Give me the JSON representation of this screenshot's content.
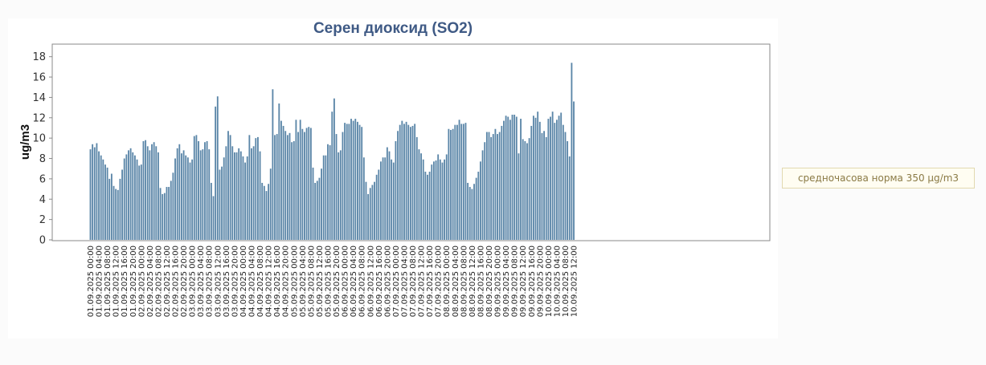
{
  "norm_note": "средночасова норма 350 µg/m3",
  "chart_data": {
    "type": "bar",
    "title": "Серен диоксид (SO2)",
    "xlabel": "",
    "ylabel": "ug/m3",
    "ylim": [
      0,
      19
    ],
    "yticks": [
      0,
      2,
      4,
      6,
      8,
      10,
      12,
      14,
      16,
      18
    ],
    "grid": false,
    "bar_color": "#5b86a8",
    "xtick_labels": [
      "01.09.2025 00:00",
      "01.09.2025 04:00",
      "01.09.2025 08:00",
      "01.09.2025 12:00",
      "01.09.2025 16:00",
      "01.09.2025 20:00",
      "02.09.2025 00:00",
      "02.09.2025 04:00",
      "02.09.2025 08:00",
      "02.09.2025 12:00",
      "02.09.2025 16:00",
      "02.09.2025 20:00",
      "03.09.2025 00:00",
      "03.09.2025 04:00",
      "03.09.2025 08:00",
      "03.09.2025 12:00",
      "03.09.2025 16:00",
      "03.09.2025 20:00",
      "04.09.2025 00:00",
      "04.09.2025 04:00",
      "04.09.2025 08:00",
      "04.09.2025 12:00",
      "04.09.2025 16:00",
      "04.09.2025 20:00",
      "05.09.2025 00:00",
      "05.09.2025 04:00",
      "05.09.2025 08:00",
      "05.09.2025 12:00",
      "05.09.2025 16:00",
      "05.09.2025 20:00",
      "06.09.2025 00:00",
      "06.09.2025 04:00",
      "06.09.2025 08:00",
      "06.09.2025 12:00",
      "06.09.2025 16:00",
      "06.09.2025 20:00",
      "07.09.2025 00:00",
      "07.09.2025 04:00",
      "07.09.2025 08:00",
      "07.09.2025 12:00",
      "07.09.2025 16:00",
      "07.09.2025 20:00",
      "08.09.2025 00:00",
      "08.09.2025 04:00",
      "08.09.2025 08:00",
      "08.09.2025 12:00",
      "08.09.2025 16:00",
      "08.09.2025 20:00",
      "09.09.2025 00:00",
      "09.09.2025 04:00",
      "09.09.2025 08:00",
      "09.09.2025 12:00",
      "09.09.2025 16:00",
      "09.09.2025 20:00",
      "10.09.2025 00:00",
      "10.09.2025 04:00",
      "10.09.2025 08:00",
      "10.09.2025 12:00"
    ],
    "values": [
      8.9,
      9.4,
      9.1,
      9.5,
      8.7,
      8.3,
      7.9,
      7.4,
      7.1,
      6.0,
      6.5,
      5.3,
      5.0,
      4.9,
      6.0,
      6.9,
      8.0,
      8.4,
      8.8,
      9.0,
      8.6,
      8.3,
      7.9,
      7.3,
      7.4,
      9.7,
      9.8,
      9.2,
      8.8,
      9.4,
      9.6,
      9.2,
      8.6,
      5.1,
      4.5,
      4.6,
      5.2,
      5.2,
      5.8,
      6.6,
      8.0,
      9.0,
      9.4,
      8.5,
      8.8,
      8.3,
      8.1,
      7.6,
      7.9,
      10.2,
      10.3,
      9.7,
      8.8,
      8.9,
      9.6,
      9.7,
      8.9,
      5.6,
      4.3,
      13.1,
      14.1,
      6.9,
      7.2,
      8.1,
      9.2,
      10.7,
      10.3,
      9.2,
      8.6,
      8.6,
      9.0,
      8.7,
      8.2,
      7.6,
      8.2,
      10.3,
      9.0,
      9.2,
      10.0,
      10.1,
      8.7,
      5.6,
      5.3,
      4.8,
      5.5,
      7.0,
      14.8,
      10.3,
      10.4,
      13.4,
      11.7,
      11.2,
      10.7,
      10.3,
      10.5,
      9.6,
      9.7,
      11.8,
      10.6,
      11.8,
      10.9,
      10.6,
      11.0,
      11.1,
      11.0,
      7.1,
      5.6,
      5.8,
      6.1,
      7.0,
      8.3,
      8.3,
      9.4,
      9.3,
      12.6,
      13.9,
      10.4,
      8.6,
      8.8,
      10.6,
      11.5,
      11.4,
      11.4,
      11.9,
      11.7,
      11.9,
      11.6,
      11.3,
      11.1,
      8.1,
      5.7,
      4.5,
      5.1,
      5.4,
      5.7,
      6.4,
      6.9,
      7.7,
      8.1,
      8.1,
      9.1,
      8.7,
      7.9,
      7.6,
      9.7,
      10.7,
      11.3,
      11.7,
      11.4,
      11.6,
      11.3,
      11.1,
      11.2,
      11.4,
      10.1,
      8.9,
      8.5,
      7.9,
      6.7,
      6.4,
      6.7,
      7.4,
      7.7,
      7.8,
      8.4,
      7.9,
      7.6,
      7.9,
      8.4,
      10.9,
      10.8,
      10.9,
      11.3,
      11.3,
      11.8,
      11.4,
      11.4,
      11.5,
      5.6,
      5.2,
      5.0,
      5.5,
      6.1,
      6.7,
      7.7,
      8.8,
      9.6,
      10.6,
      10.6,
      10.1,
      10.4,
      10.9,
      10.4,
      10.6,
      11.2,
      11.7,
      12.2,
      12.1,
      11.8,
      12.3,
      12.3,
      12.1,
      8.5,
      11.9,
      9.9,
      9.7,
      9.5,
      10.0,
      11.2,
      12.2,
      12.0,
      12.6,
      11.6,
      10.5,
      10.7,
      10.1,
      11.9,
      12.1,
      12.6,
      11.5,
      11.8,
      12.2,
      12.5,
      11.3,
      10.6,
      9.7,
      8.2,
      17.4,
      13.6
    ]
  }
}
